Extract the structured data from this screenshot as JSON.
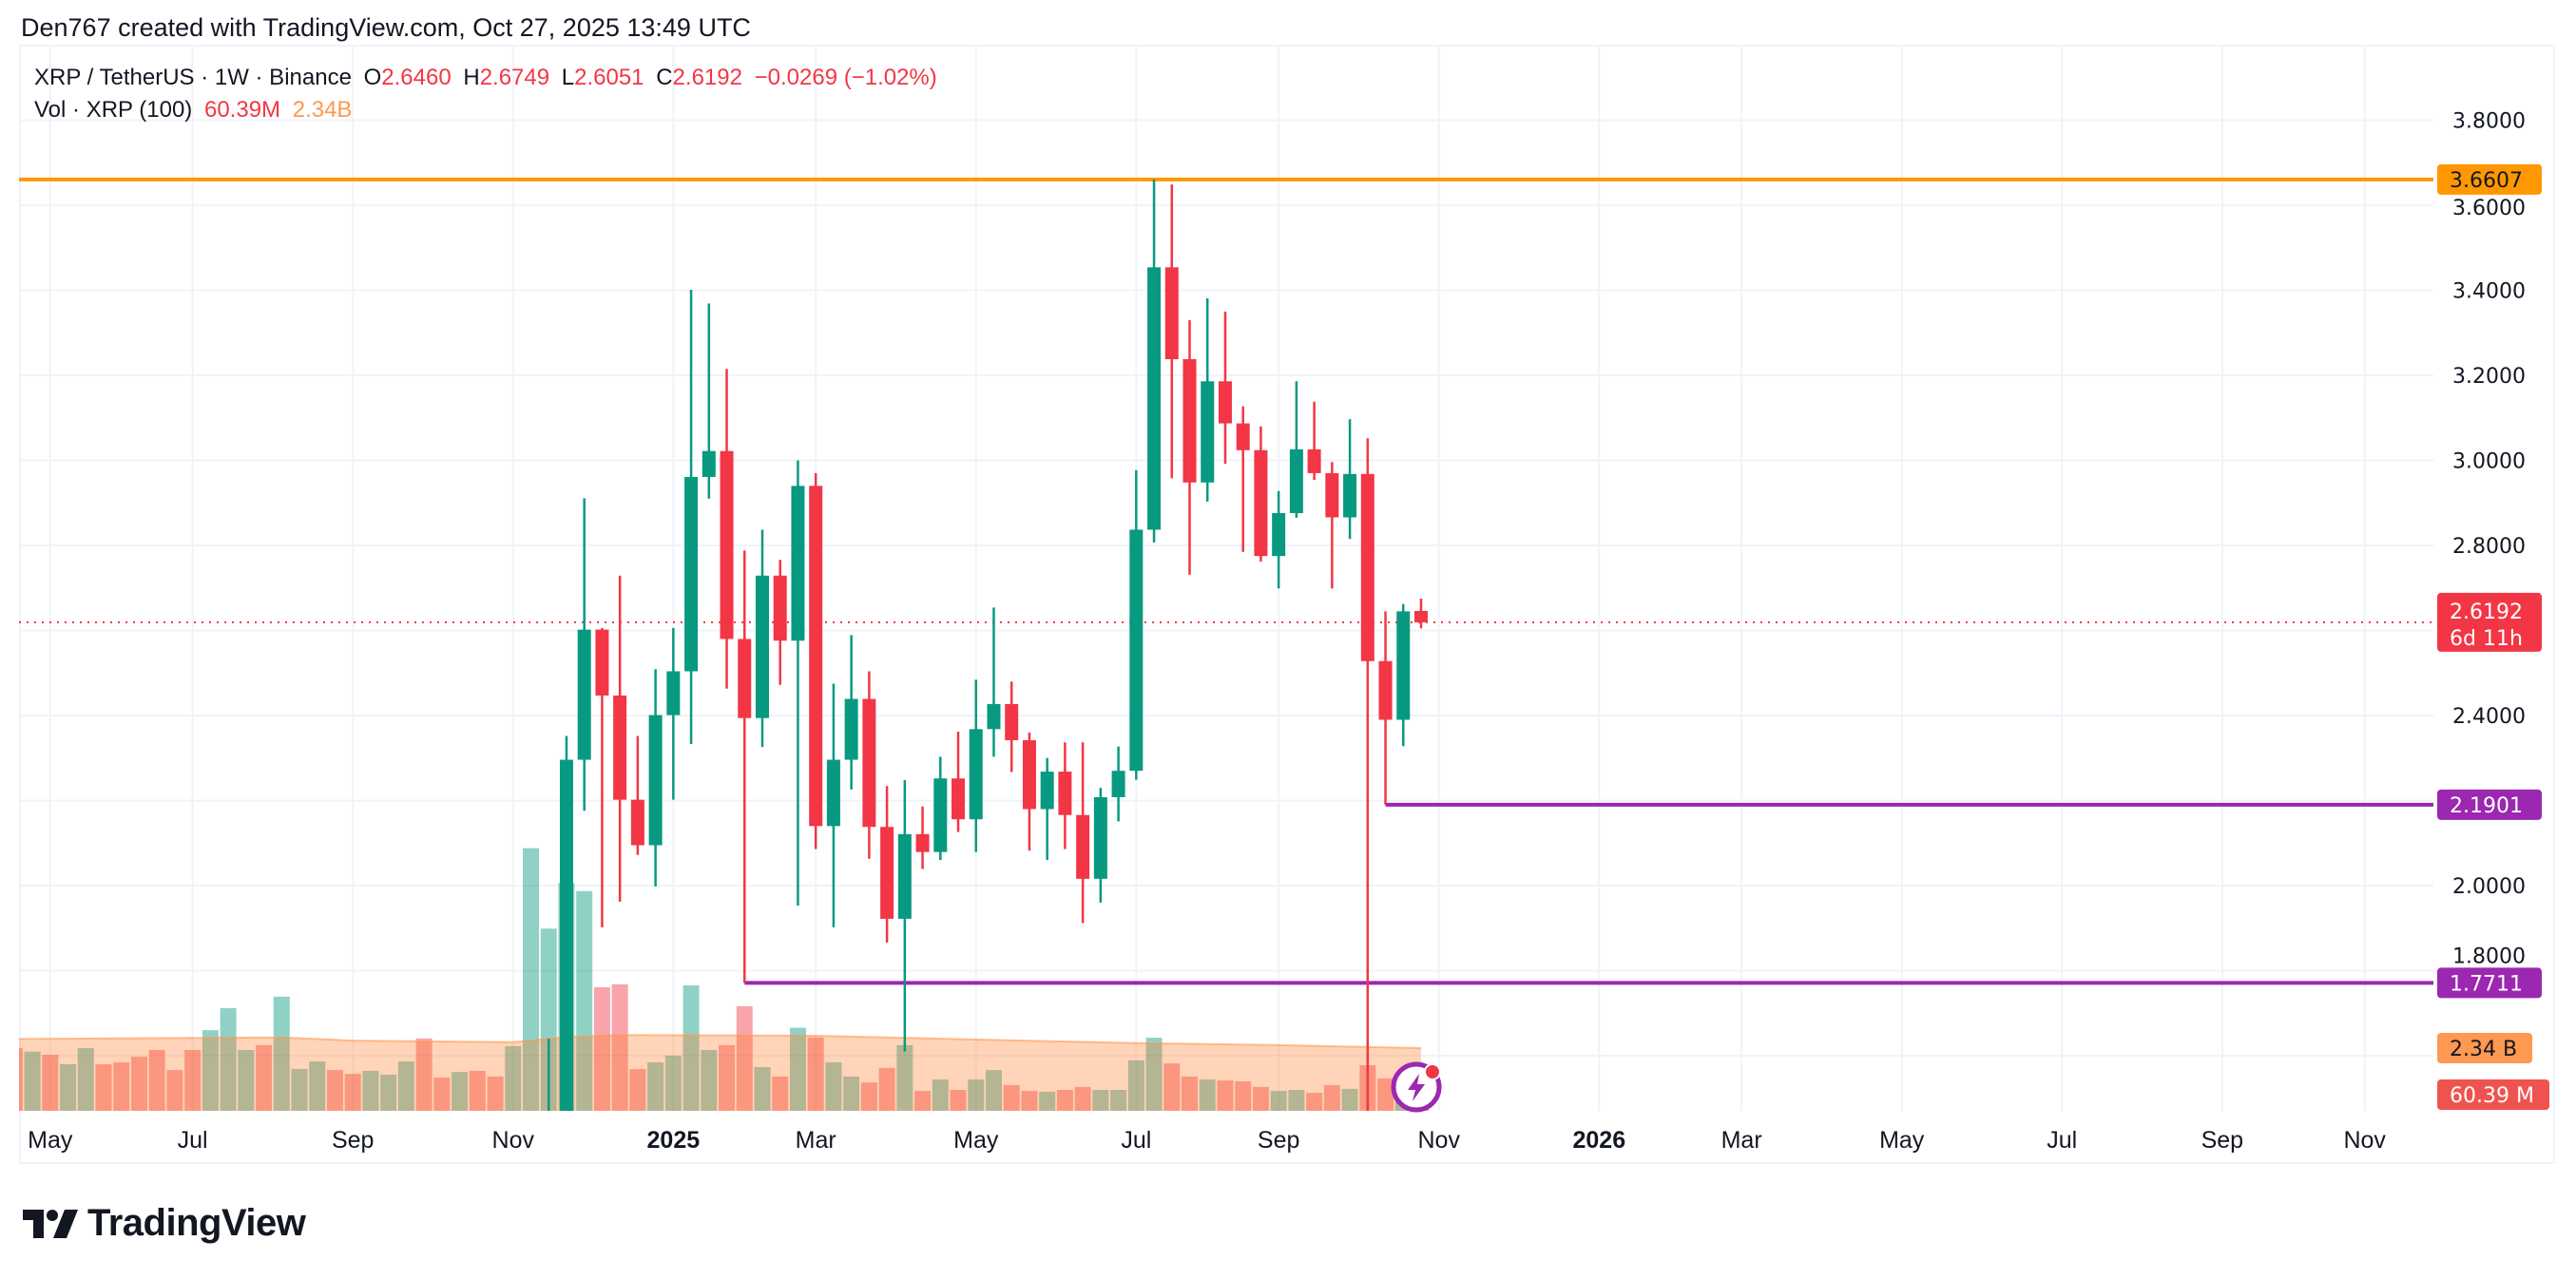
{
  "credit": "Den767 created with TradingView.com, Oct 27, 2025 13:49 UTC",
  "legend": {
    "symbol": "XRP / TetherUS · 1W · Binance",
    "o_label": "O",
    "o": "2.6460",
    "h_label": "H",
    "h": "2.6749",
    "l_label": "L",
    "l": "2.6051",
    "c_label": "C",
    "c": "2.6192",
    "change": "−0.0269 (−1.02%)",
    "vol_label": "Vol · XRP (100)",
    "vol": "60.39M",
    "vol_ma": "2.34B"
  },
  "price_axis": {
    "ticks": [
      "3.8000",
      "3.6000",
      "3.4000",
      "3.2000",
      "3.0000",
      "2.8000",
      "2.4000",
      "2.0000",
      "1.8000"
    ],
    "labels": [
      {
        "text": "3.6607",
        "value": 3.6607,
        "color": "#FF9800",
        "text_color": "#131722",
        "kind": "horizontal-line"
      },
      {
        "text": "2.6192",
        "sub": "6d 11h",
        "value": 2.6192,
        "color": "#F23645",
        "text_color": "#FFFFFF",
        "kind": "last-price"
      },
      {
        "text": "2.1901",
        "value": 2.1901,
        "color": "#9C27B0",
        "text_color": "#FFFFFF",
        "kind": "horizontal-ray"
      },
      {
        "text": "1.7711",
        "value": 1.7711,
        "color": "#9C27B0",
        "text_color": "#FFFFFF",
        "kind": "horizontal-ray"
      }
    ],
    "vol_labels": [
      {
        "text": "2.34 B",
        "color": "#FF9850",
        "text_color": "#131722"
      },
      {
        "text": "60.39 M",
        "color": "#EF5350",
        "text_color": "#FFFFFF"
      }
    ]
  },
  "time_axis": [
    {
      "label": "May",
      "date": "2024-05-06"
    },
    {
      "label": "Jul",
      "date": "2024-07-01"
    },
    {
      "label": "Sep",
      "date": "2024-09-02"
    },
    {
      "label": "Nov",
      "date": "2024-11-04"
    },
    {
      "label": "2025",
      "date": "2025-01-06",
      "bold": true
    },
    {
      "label": "Mar",
      "date": "2025-03-03"
    },
    {
      "label": "May",
      "date": "2025-05-05"
    },
    {
      "label": "Jul",
      "date": "2025-07-07"
    },
    {
      "label": "Sep",
      "date": "2025-09-01"
    },
    {
      "label": "Nov",
      "date": "2025-11-03"
    },
    {
      "label": "2026",
      "date": "2026-01-05",
      "bold": true
    },
    {
      "label": "Mar",
      "date": "2026-03-02"
    },
    {
      "label": "May",
      "date": "2026-05-04"
    },
    {
      "label": "Jul",
      "date": "2026-07-06"
    },
    {
      "label": "Sep",
      "date": "2026-09-07"
    },
    {
      "label": "Nov",
      "date": "2026-11-02"
    }
  ],
  "colors": {
    "up": "#089981",
    "down": "#F23645",
    "grid": "#F0F3FA",
    "orange_line": "#FF9800",
    "purple_line": "#9C27B0",
    "vol_ma": "#FF9850"
  },
  "chart_data": {
    "type": "candlestick",
    "interval": "1W",
    "ylim": [
      1.6,
      3.85
    ],
    "grid": true,
    "horizontal_lines": [
      {
        "value": 3.6607,
        "color": "#FF9800",
        "from": "2024-04-22"
      },
      {
        "value": 2.1901,
        "color": "#9C27B0",
        "from": "2025-10-13"
      },
      {
        "value": 1.7711,
        "color": "#9C27B0",
        "from": "2025-02-03"
      }
    ],
    "last_price": 2.6192,
    "candles": [
      {
        "date": "2024-11-18",
        "o": 1.13,
        "h": 1.64,
        "l": 1.06,
        "c": 1.45,
        "v": 6.8
      },
      {
        "date": "2024-11-25",
        "o": 1.45,
        "h": 2.352,
        "l": 1.38,
        "c": 2.296,
        "v": 8.5
      },
      {
        "date": "2024-12-02",
        "o": 2.296,
        "h": 2.911,
        "l": 2.176,
        "c": 2.602,
        "v": 8.2
      },
      {
        "date": "2024-12-09",
        "o": 2.602,
        "h": 2.606,
        "l": 1.902,
        "c": 2.447,
        "v": 4.61
      },
      {
        "date": "2024-12-16",
        "o": 2.447,
        "h": 2.729,
        "l": 1.962,
        "c": 2.202,
        "v": 4.72
      },
      {
        "date": "2024-12-23",
        "o": 2.202,
        "h": 2.352,
        "l": 2.072,
        "c": 2.095,
        "v": 1.56
      },
      {
        "date": "2024-12-30",
        "o": 2.095,
        "h": 2.509,
        "l": 1.998,
        "c": 2.401,
        "v": 1.81
      },
      {
        "date": "2025-01-06",
        "o": 2.401,
        "h": 2.606,
        "l": 2.202,
        "c": 2.504,
        "v": 2.06
      },
      {
        "date": "2025-01-13",
        "o": 2.504,
        "h": 3.401,
        "l": 2.333,
        "c": 2.961,
        "v": 4.68
      },
      {
        "date": "2025-01-20",
        "o": 2.961,
        "h": 3.369,
        "l": 2.91,
        "c": 3.022,
        "v": 2.27
      },
      {
        "date": "2025-01-27",
        "o": 3.022,
        "h": 3.215,
        "l": 2.463,
        "c": 2.58,
        "v": 2.45
      },
      {
        "date": "2025-02-03",
        "o": 2.58,
        "h": 2.788,
        "l": 1.7711,
        "c": 2.394,
        "v": 3.9
      },
      {
        "date": "2025-02-10",
        "o": 2.394,
        "h": 2.837,
        "l": 2.326,
        "c": 2.729,
        "v": 1.63
      },
      {
        "date": "2025-02-17",
        "o": 2.729,
        "h": 2.766,
        "l": 2.472,
        "c": 2.576,
        "v": 1.28
      },
      {
        "date": "2025-02-24",
        "o": 2.576,
        "h": 3.0,
        "l": 1.953,
        "c": 2.94,
        "v": 3.1
      },
      {
        "date": "2025-03-03",
        "o": 2.94,
        "h": 2.97,
        "l": 2.086,
        "c": 2.14,
        "v": 2.74
      },
      {
        "date": "2025-03-10",
        "o": 2.14,
        "h": 2.475,
        "l": 1.902,
        "c": 2.296,
        "v": 1.81
      },
      {
        "date": "2025-03-17",
        "o": 2.296,
        "h": 2.589,
        "l": 2.226,
        "c": 2.439,
        "v": 1.28
      },
      {
        "date": "2025-03-24",
        "o": 2.439,
        "h": 2.504,
        "l": 2.063,
        "c": 2.138,
        "v": 1.06
      },
      {
        "date": "2025-03-31",
        "o": 2.138,
        "h": 2.234,
        "l": 1.866,
        "c": 1.922,
        "v": 1.6
      },
      {
        "date": "2025-04-07",
        "o": 1.922,
        "h": 2.248,
        "l": 1.61,
        "c": 2.121,
        "v": 2.45
      },
      {
        "date": "2025-04-14",
        "o": 2.121,
        "h": 2.186,
        "l": 2.039,
        "c": 2.079,
        "v": 0.74
      },
      {
        "date": "2025-04-21",
        "o": 2.079,
        "h": 2.303,
        "l": 2.06,
        "c": 2.252,
        "v": 1.17
      },
      {
        "date": "2025-04-28",
        "o": 2.252,
        "h": 2.362,
        "l": 2.126,
        "c": 2.156,
        "v": 0.78
      },
      {
        "date": "2025-05-05",
        "o": 2.156,
        "h": 2.484,
        "l": 2.079,
        "c": 2.368,
        "v": 1.17
      },
      {
        "date": "2025-05-12",
        "o": 2.368,
        "h": 2.654,
        "l": 2.303,
        "c": 2.427,
        "v": 1.52
      },
      {
        "date": "2025-05-19",
        "o": 2.427,
        "h": 2.48,
        "l": 2.267,
        "c": 2.342,
        "v": 0.96
      },
      {
        "date": "2025-05-26",
        "o": 2.342,
        "h": 2.36,
        "l": 2.082,
        "c": 2.18,
        "v": 0.74
      },
      {
        "date": "2025-06-02",
        "o": 2.18,
        "h": 2.3,
        "l": 2.06,
        "c": 2.268,
        "v": 0.71
      },
      {
        "date": "2025-06-09",
        "o": 2.268,
        "h": 2.337,
        "l": 2.086,
        "c": 2.166,
        "v": 0.78
      },
      {
        "date": "2025-06-16",
        "o": 2.166,
        "h": 2.337,
        "l": 1.912,
        "c": 2.016,
        "v": 0.89
      },
      {
        "date": "2025-06-23",
        "o": 2.016,
        "h": 2.23,
        "l": 1.96,
        "c": 2.208,
        "v": 0.78
      },
      {
        "date": "2025-06-30",
        "o": 2.208,
        "h": 2.327,
        "l": 2.151,
        "c": 2.27,
        "v": 0.78
      },
      {
        "date": "2025-07-07",
        "o": 2.27,
        "h": 2.977,
        "l": 2.249,
        "c": 2.837,
        "v": 1.88
      },
      {
        "date": "2025-07-14",
        "o": 2.837,
        "h": 3.6607,
        "l": 2.807,
        "c": 3.454,
        "v": 2.73
      },
      {
        "date": "2025-07-21",
        "o": 3.454,
        "h": 3.649,
        "l": 2.958,
        "c": 3.238,
        "v": 1.77
      },
      {
        "date": "2025-07-28",
        "o": 3.238,
        "h": 3.33,
        "l": 2.731,
        "c": 2.948,
        "v": 1.28
      },
      {
        "date": "2025-08-04",
        "o": 2.948,
        "h": 3.381,
        "l": 2.903,
        "c": 3.186,
        "v": 1.17
      },
      {
        "date": "2025-08-11",
        "o": 3.186,
        "h": 3.35,
        "l": 2.992,
        "c": 3.087,
        "v": 1.13
      },
      {
        "date": "2025-08-18",
        "o": 3.087,
        "h": 3.127,
        "l": 2.785,
        "c": 3.024,
        "v": 1.1
      },
      {
        "date": "2025-08-25",
        "o": 3.024,
        "h": 3.08,
        "l": 2.762,
        "c": 2.775,
        "v": 0.89
      },
      {
        "date": "2025-09-01",
        "o": 2.775,
        "h": 2.928,
        "l": 2.699,
        "c": 2.876,
        "v": 0.74
      },
      {
        "date": "2025-09-08",
        "o": 2.876,
        "h": 3.186,
        "l": 2.865,
        "c": 3.026,
        "v": 0.78
      },
      {
        "date": "2025-09-15",
        "o": 3.026,
        "h": 3.138,
        "l": 2.954,
        "c": 2.97,
        "v": 0.67
      },
      {
        "date": "2025-09-22",
        "o": 2.97,
        "h": 2.996,
        "l": 2.699,
        "c": 2.866,
        "v": 0.96
      },
      {
        "date": "2025-09-29",
        "o": 2.866,
        "h": 3.097,
        "l": 2.815,
        "c": 2.968,
        "v": 0.82
      },
      {
        "date": "2025-10-06",
        "o": 2.968,
        "h": 3.052,
        "l": 1.25,
        "c": 2.528,
        "v": 1.7
      },
      {
        "date": "2025-10-13",
        "o": 2.528,
        "h": 2.645,
        "l": 2.1901,
        "c": 2.39,
        "v": 1.21
      },
      {
        "date": "2025-10-20",
        "o": 2.39,
        "h": 2.662,
        "l": 2.328,
        "c": 2.645,
        "v": 0.82
      },
      {
        "date": "2025-10-27",
        "o": 2.646,
        "h": 2.6749,
        "l": 2.6051,
        "c": 2.6192,
        "v": 0.06039
      }
    ],
    "earlier_volumes": [
      [
        "2024-04-22",
        2.34,
        "down"
      ],
      [
        "2024-04-29",
        2.21,
        "up"
      ],
      [
        "2024-05-06",
        2.09,
        "down"
      ],
      [
        "2024-05-13",
        1.74,
        "up"
      ],
      [
        "2024-05-20",
        2.34,
        "up"
      ],
      [
        "2024-05-27",
        1.74,
        "down"
      ],
      [
        "2024-06-03",
        1.81,
        "down"
      ],
      [
        "2024-06-10",
        2.02,
        "down"
      ],
      [
        "2024-06-17",
        2.27,
        "down"
      ],
      [
        "2024-06-24",
        1.52,
        "down"
      ],
      [
        "2024-07-01",
        2.27,
        "down"
      ],
      [
        "2024-07-08",
        3.01,
        "up"
      ],
      [
        "2024-07-15",
        3.83,
        "up"
      ],
      [
        "2024-07-22",
        2.27,
        "up"
      ],
      [
        "2024-07-29",
        2.45,
        "down"
      ],
      [
        "2024-08-05",
        4.26,
        "up"
      ],
      [
        "2024-08-12",
        1.56,
        "up"
      ],
      [
        "2024-08-19",
        1.84,
        "up"
      ],
      [
        "2024-08-26",
        1.52,
        "down"
      ],
      [
        "2024-09-02",
        1.38,
        "down"
      ],
      [
        "2024-09-09",
        1.49,
        "up"
      ],
      [
        "2024-09-16",
        1.35,
        "up"
      ],
      [
        "2024-09-23",
        1.84,
        "up"
      ],
      [
        "2024-09-30",
        2.7,
        "down"
      ],
      [
        "2024-10-07",
        1.24,
        "down"
      ],
      [
        "2024-10-14",
        1.45,
        "up"
      ],
      [
        "2024-10-21",
        1.49,
        "down"
      ],
      [
        "2024-10-28",
        1.28,
        "down"
      ],
      [
        "2024-11-04",
        2.41,
        "up"
      ],
      [
        "2024-11-11",
        9.8,
        "up"
      ]
    ],
    "volume_unit": "B",
    "volume_ma_period": 100,
    "volume_ma": [
      [
        "2024-04-22",
        2.68
      ],
      [
        "2024-08-05",
        2.74
      ],
      [
        "2024-09-02",
        2.62
      ],
      [
        "2024-11-04",
        2.56
      ],
      [
        "2024-11-25",
        2.75
      ],
      [
        "2024-12-16",
        2.83
      ],
      [
        "2025-03-03",
        2.8
      ],
      [
        "2025-05-05",
        2.66
      ],
      [
        "2025-07-07",
        2.53
      ],
      [
        "2025-09-01",
        2.45
      ],
      [
        "2025-10-27",
        2.34
      ]
    ]
  },
  "branding": {
    "logo_text": "TradingView"
  }
}
